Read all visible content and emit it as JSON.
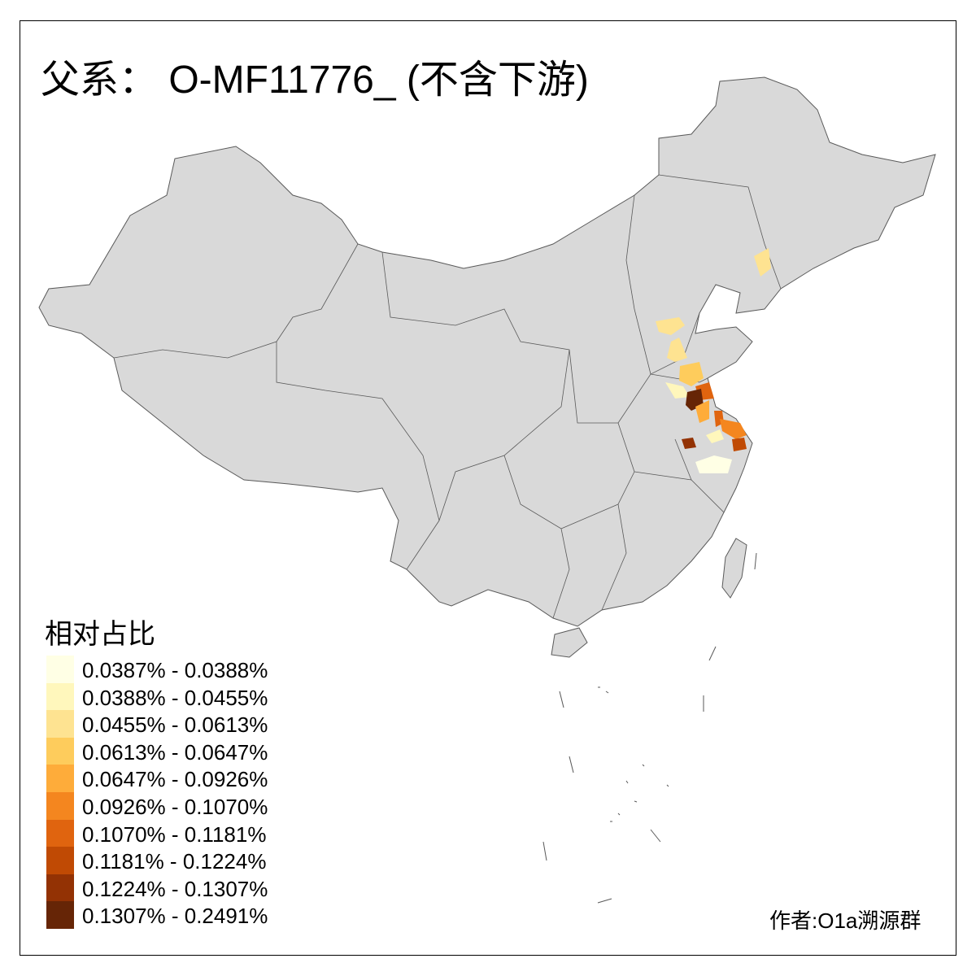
{
  "title": "父系： O-MF11776_ (不含下游)",
  "legend": {
    "title": "相对占比",
    "items": [
      {
        "label": "0.0387% - 0.0388%",
        "color": "#FFFFE5"
      },
      {
        "label": "0.0388% - 0.0455%",
        "color": "#FFF7BC"
      },
      {
        "label": "0.0455% - 0.0613%",
        "color": "#FEE391"
      },
      {
        "label": "0.0613% - 0.0647%",
        "color": "#FECC5C"
      },
      {
        "label": "0.0647% - 0.0926%",
        "color": "#FEAC3A"
      },
      {
        "label": "0.0926% - 0.1070%",
        "color": "#F4861F"
      },
      {
        "label": "0.1070% - 0.1181%",
        "color": "#E0640F"
      },
      {
        "label": "0.1181% - 0.1224%",
        "color": "#C04A04"
      },
      {
        "label": "0.1224% - 0.1307%",
        "color": "#933204"
      },
      {
        "label": "0.1307% - 0.2491%",
        "color": "#662506"
      }
    ]
  },
  "author": "作者:O1a溯源群",
  "colors": {
    "land": "#D9D9D9",
    "border": "#595959"
  }
}
